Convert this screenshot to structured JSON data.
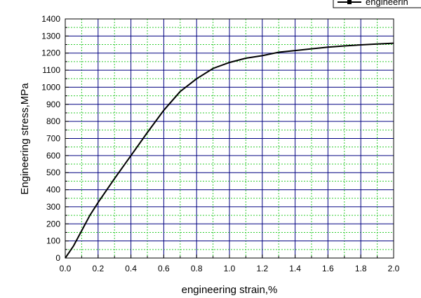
{
  "chart_data": {
    "type": "line",
    "xlabel": "engineering strain,%",
    "ylabel": "Engineering stress,MPa",
    "xlim": [
      0,
      2.0
    ],
    "ylim": [
      0,
      1400
    ],
    "x_ticks": [
      "0.0",
      "0.2",
      "0.4",
      "0.6",
      "0.8",
      "1.0",
      "1.2",
      "1.4",
      "1.6",
      "1.8",
      "2.0"
    ],
    "y_ticks": [
      "0",
      "100",
      "200",
      "300",
      "400",
      "500",
      "600",
      "700",
      "800",
      "900",
      "1000",
      "1100",
      "1200",
      "1300",
      "1400"
    ],
    "grid": true,
    "major_grid_color": "#000080",
    "minor_grid_color": "#33cc33",
    "line_color": "#000000",
    "legend_position": "top-right",
    "legend_label": "engineerin",
    "series": [
      {
        "name": "engineerin",
        "x": [
          0.0,
          0.05,
          0.1,
          0.15,
          0.2,
          0.3,
          0.4,
          0.5,
          0.6,
          0.7,
          0.8,
          0.9,
          1.0,
          1.1,
          1.2,
          1.3,
          1.4,
          1.5,
          1.6,
          1.7,
          1.8,
          1.9,
          2.0
        ],
        "y": [
          0,
          70,
          160,
          250,
          325,
          465,
          600,
          735,
          865,
          975,
          1050,
          1110,
          1145,
          1170,
          1185,
          1205,
          1215,
          1225,
          1235,
          1242,
          1248,
          1253,
          1258
        ]
      }
    ]
  }
}
